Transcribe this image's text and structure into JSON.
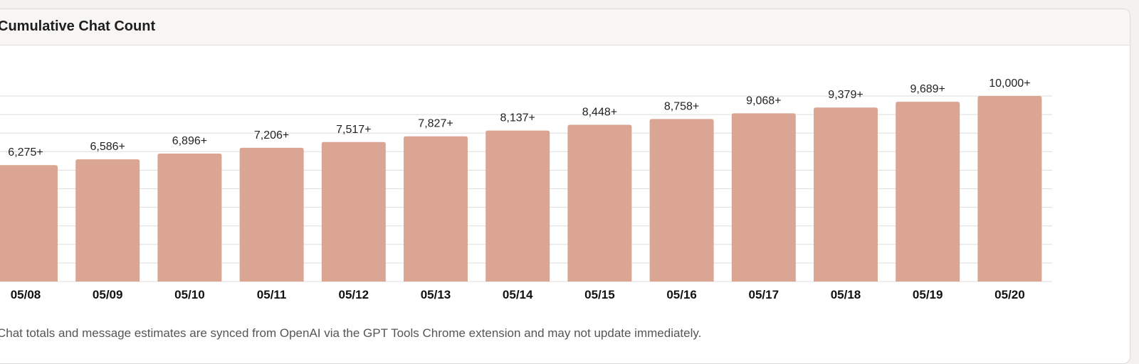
{
  "card": {
    "title": "Cumulative Chat Count"
  },
  "footnote": "Chat totals and message estimates are synced from OpenAI via the GPT Tools Chrome extension and may not update immediately.",
  "colors": {
    "bar": "#d9a390",
    "grid": "#dddddd",
    "label": "#222222",
    "tick": "#111111"
  },
  "chart_data": {
    "type": "bar",
    "title": "Cumulative Chat Count",
    "categories": [
      "05/08",
      "05/09",
      "05/10",
      "05/11",
      "05/12",
      "05/13",
      "05/14",
      "05/15",
      "05/16",
      "05/17",
      "05/18",
      "05/19",
      "05/20"
    ],
    "values": [
      6275,
      6586,
      6896,
      7206,
      7517,
      7827,
      8137,
      8448,
      8758,
      9068,
      9379,
      9689,
      10000
    ],
    "data_labels": [
      "6,275+",
      "6,586+",
      "6,896+",
      "7,206+",
      "7,517+",
      "7,827+",
      "8,137+",
      "8,448+",
      "8,758+",
      "9,068+",
      "9,379+",
      "9,689+",
      "10,000+"
    ],
    "xlabel": "",
    "ylabel": "",
    "ylim": [
      0,
      10000
    ],
    "grid": true,
    "legend": "none"
  }
}
